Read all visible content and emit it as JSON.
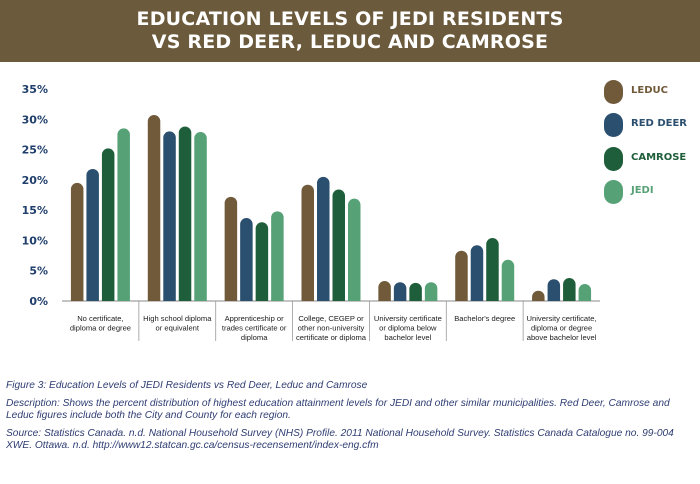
{
  "header": {
    "title": "EDUCATION LEVELS OF JEDI RESIDENTS VS RED DEER, LEDUC AND CAMROSE"
  },
  "legend": [
    {
      "label": "LEDUC",
      "color": "#705a3a"
    },
    {
      "label": "RED DEER",
      "color": "#2a4f6f"
    },
    {
      "label": "CAMROSE",
      "color": "#1f5e3a"
    },
    {
      "label": "JEDI",
      "color": "#56a176"
    }
  ],
  "chart_data": {
    "type": "bar",
    "categories": [
      [
        "No certificate,",
        "diploma or degree"
      ],
      [
        "High school diploma",
        "or equivalent"
      ],
      [
        "Apprenticeship or",
        "trades certificate or",
        "diploma"
      ],
      [
        "College, CEGEP or",
        "other non-university",
        "certificate or diploma"
      ],
      [
        "University certificate",
        "or diploma below",
        "bachelor level"
      ],
      [
        "Bachelor's degree"
      ],
      [
        "University certificate,",
        "diploma or degree",
        "above bachelor level"
      ]
    ],
    "series": [
      {
        "name": "LEDUC",
        "color": "#705a3a",
        "values": [
          19.5,
          30.7,
          17.2,
          19.2,
          3.3,
          8.3,
          1.7
        ]
      },
      {
        "name": "RED DEER",
        "color": "#2a4f6f",
        "values": [
          21.8,
          28.0,
          13.7,
          20.5,
          3.1,
          9.2,
          3.6
        ]
      },
      {
        "name": "CAMROSE",
        "color": "#1f5e3a",
        "values": [
          25.2,
          28.8,
          13.0,
          18.4,
          3.0,
          10.4,
          3.8
        ]
      },
      {
        "name": "JEDI",
        "color": "#56a176",
        "values": [
          28.5,
          27.9,
          14.8,
          16.9,
          3.1,
          6.8,
          2.8
        ]
      }
    ],
    "ylim": [
      0,
      35
    ],
    "yticks": [
      "0%",
      "5%",
      "10%",
      "15%",
      "20%",
      "25%",
      "30%",
      "35%"
    ],
    "xlabel": "",
    "ylabel": ""
  },
  "caption": {
    "figure": "Figure 3: Education Levels of JEDI Residents vs Red Deer, Leduc and Camrose",
    "description": "Description: Shows the percent distribution of highest education attainment levels for JEDI and other similar municipalities. Red Deer, Camrose and Leduc figures include both the City and County for each region.",
    "source": "Source: Statistics Canada. n.d. National Household Survey (NHS) Profile. 2011 National Household Survey. Statistics Canada Catalogue no. 99-004 XWE. Ottawa. n.d. http://www12.statcan.gc.ca/census-recensement/index-eng.cfm"
  }
}
